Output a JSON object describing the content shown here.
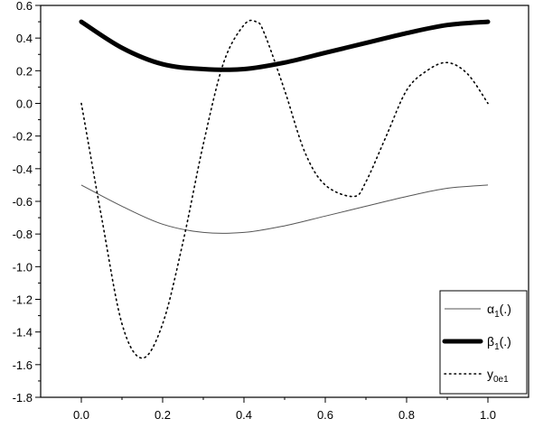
{
  "chart_data": {
    "type": "line",
    "title": "",
    "xlabel": "",
    "ylabel": "",
    "xlim": [
      -0.1,
      1.1
    ],
    "ylim": [
      -1.8,
      0.6
    ],
    "x_ticks": [
      "0.0",
      "0.2",
      "0.4",
      "0.6",
      "0.8",
      "1.0"
    ],
    "x_tick_values": [
      0.0,
      0.2,
      0.4,
      0.6,
      0.8,
      1.0
    ],
    "y_ticks": [
      "0.6",
      "0.4",
      "0.2",
      "0.0",
      "-0.2",
      "-0.4",
      "-0.6",
      "-0.8",
      "-1.0",
      "-1.2",
      "-1.4",
      "-1.6",
      "-1.8"
    ],
    "y_tick_values": [
      0.6,
      0.4,
      0.2,
      0.0,
      -0.2,
      -0.4,
      -0.6,
      -0.8,
      -1.0,
      -1.2,
      -1.4,
      -1.6,
      -1.8
    ],
    "grid": false,
    "legend_position": "bottom-right",
    "series": [
      {
        "key": "alpha",
        "legend_main": "α",
        "legend_sub": "1",
        "legend_tail": "(.)",
        "style": "thin",
        "x": [
          0.0,
          0.1,
          0.2,
          0.3,
          0.4,
          0.5,
          0.6,
          0.7,
          0.8,
          0.9,
          1.0
        ],
        "y": [
          -0.5,
          -0.63,
          -0.74,
          -0.79,
          -0.79,
          -0.75,
          -0.69,
          -0.63,
          -0.57,
          -0.52,
          -0.5
        ]
      },
      {
        "key": "beta",
        "legend_main": "β",
        "legend_sub": "1",
        "legend_tail": "(.)",
        "style": "thick",
        "x": [
          0.0,
          0.1,
          0.2,
          0.3,
          0.4,
          0.5,
          0.6,
          0.7,
          0.8,
          0.9,
          1.0
        ],
        "y": [
          0.5,
          0.34,
          0.24,
          0.21,
          0.21,
          0.25,
          0.31,
          0.37,
          0.43,
          0.48,
          0.5
        ]
      },
      {
        "key": "y0e1",
        "legend_main": "y",
        "legend_sub": "0e1",
        "legend_tail": "",
        "style": "dotted",
        "x": [
          0.0,
          0.05,
          0.1,
          0.15,
          0.2,
          0.25,
          0.3,
          0.35,
          0.4,
          0.43,
          0.45,
          0.5,
          0.55,
          0.6,
          0.67,
          0.7,
          0.75,
          0.8,
          0.85,
          0.9,
          0.95,
          1.0
        ],
        "y": [
          0.0,
          -0.7,
          -1.35,
          -1.56,
          -1.35,
          -0.85,
          -0.25,
          0.25,
          0.48,
          0.5,
          0.43,
          0.08,
          -0.3,
          -0.5,
          -0.57,
          -0.48,
          -0.2,
          0.08,
          0.2,
          0.25,
          0.18,
          0.0
        ]
      }
    ]
  }
}
